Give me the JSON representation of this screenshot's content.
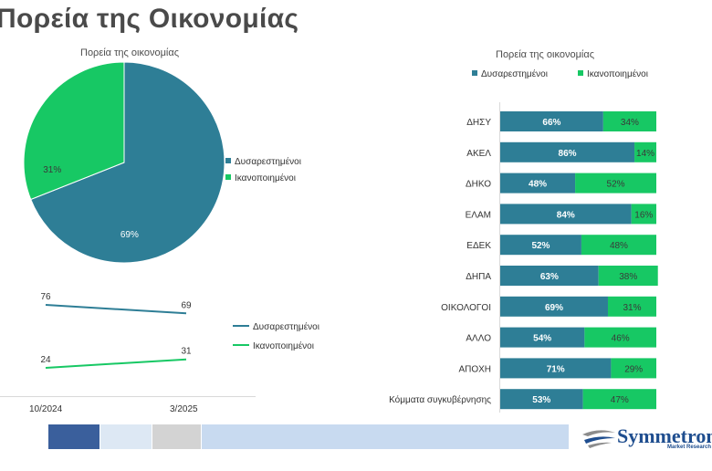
{
  "page": {
    "title": "Πορεία της Οικονομίας"
  },
  "colors": {
    "dissatisfied": "#2e7e96",
    "satisfied": "#17c864",
    "footer": [
      "#3a5f9c",
      "#dde8f4",
      "#d3d3d3",
      "#c8daf0"
    ]
  },
  "pie": {
    "title": "Πορεία της οικονομίας",
    "legend": [
      "Δυσαρεστημένοι",
      "Ικανοποιημένοι"
    ],
    "labels": [
      "69%",
      "31%"
    ]
  },
  "trend": {
    "legend": [
      "Δυσαρεστημένοι",
      "Ικανοποιημένοι"
    ],
    "dates": [
      "10/2024",
      "3/2025"
    ]
  },
  "bars": {
    "title": "Πορεία της οικονομίας",
    "legend": [
      "Δυσαρεστημένοι",
      "Ικανοποιημένοι"
    ]
  },
  "logo": {
    "text": "Symmetron",
    "subtext": "Market Research"
  },
  "chart_data": [
    {
      "type": "pie",
      "title": "Πορεία της οικονομίας",
      "categories": [
        "Δυσαρεστημένοι",
        "Ικανοποιημένοι"
      ],
      "values": [
        69,
        31
      ],
      "legend_position": "right"
    },
    {
      "type": "line",
      "x": [
        "10/2024",
        "3/2025"
      ],
      "series": [
        {
          "name": "Δυσαρεστημένοι",
          "values": [
            76,
            69
          ]
        },
        {
          "name": "Ικανοποιημένοι",
          "values": [
            24,
            31
          ]
        }
      ],
      "legend_position": "right"
    },
    {
      "type": "bar",
      "orientation": "horizontal",
      "stacked": true,
      "title": "Πορεία της οικονομίας",
      "categories": [
        "ΔΗΣΥ",
        "ΑΚΕΛ",
        "ΔΗΚΟ",
        "ΕΛΑΜ",
        "ΕΔΕΚ",
        "ΔΗΠΑ",
        "ΟΙΚΟΛΟΓΟΙ",
        "ΑΛΛΟ",
        "ΑΠΟΧΗ",
        "Κόμματα συγκυβέρνησης"
      ],
      "series": [
        {
          "name": "Δυσαρεστημένοι",
          "values": [
            66,
            86,
            48,
            84,
            52,
            63,
            69,
            54,
            71,
            53
          ]
        },
        {
          "name": "Ικανοποιημένοι",
          "values": [
            34,
            14,
            52,
            16,
            48,
            38,
            31,
            46,
            29,
            47
          ]
        }
      ],
      "legend_position": "top"
    }
  ]
}
